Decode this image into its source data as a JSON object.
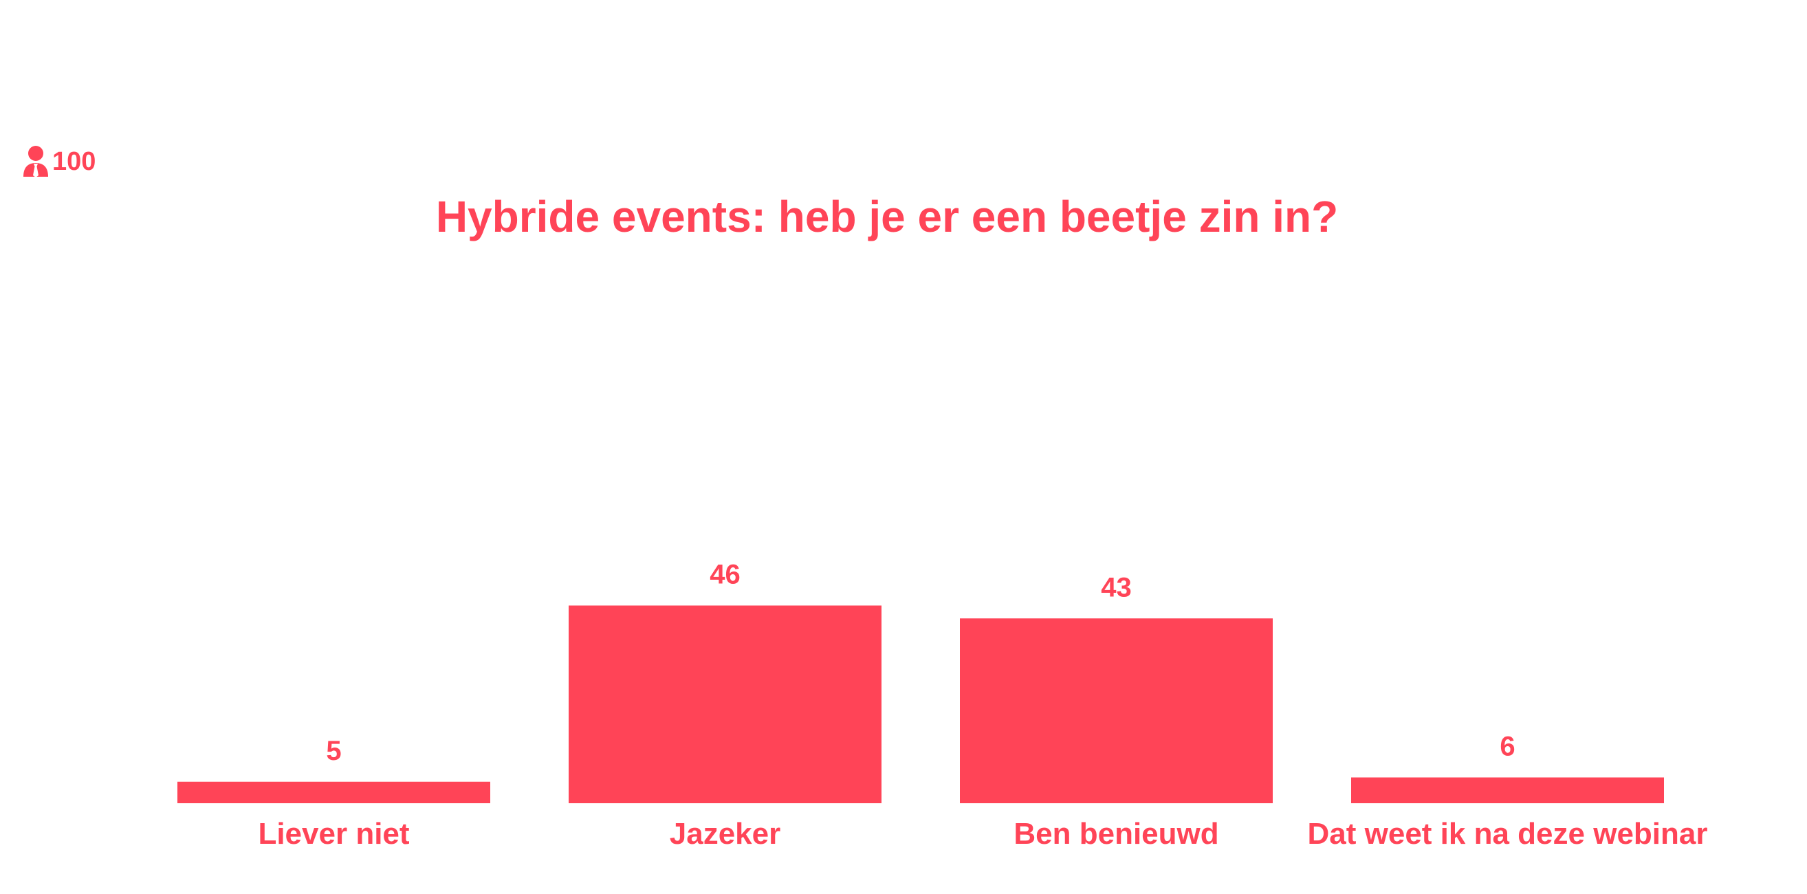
{
  "participants": {
    "count": "100",
    "icon": "user-icon"
  },
  "chart_data": {
    "type": "bar",
    "title": "Hybride events: heb je er een beetje zin in?",
    "categories": [
      "Liever niet",
      "Jazeker",
      "Ben benieuwd",
      "Dat weet ik na deze webinar"
    ],
    "values": [
      5,
      46,
      43,
      6
    ],
    "ylim": [
      0,
      100
    ],
    "bar_color": "#ff4457",
    "text_color": "#ff4457",
    "grid": false,
    "legend": "none"
  }
}
